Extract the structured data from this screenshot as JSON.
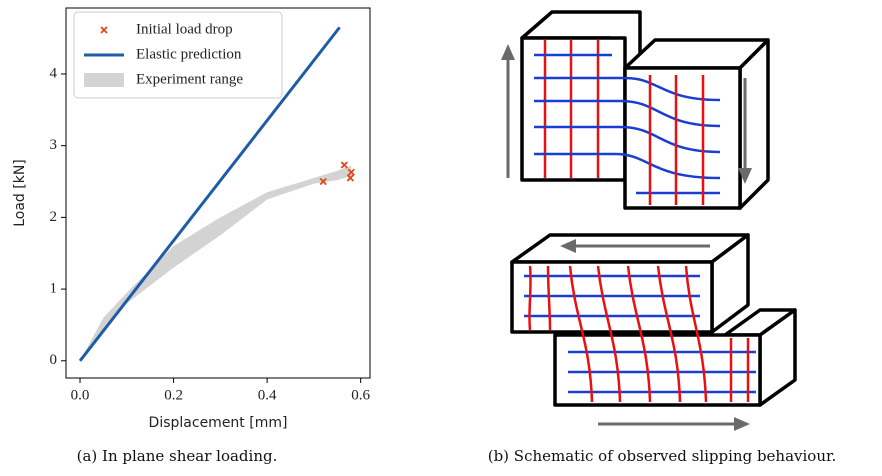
{
  "chart_data": {
    "type": "line",
    "xlabel": "Displacement [mm]",
    "ylabel": "Load  [kN]",
    "xlim": [
      -0.03,
      0.62
    ],
    "ylim": [
      -0.24,
      4.92
    ],
    "xticks": [
      {
        "value": 0,
        "label": "0.0"
      },
      0.2,
      0.4,
      0.6
    ],
    "yticks": [
      0,
      1,
      2,
      3,
      4
    ],
    "legend": "upper left",
    "series": [
      {
        "name": "Initial load drop",
        "kind": "scatter",
        "color": "#e2461c",
        "x": [
          0.52,
          0.565,
          0.578,
          0.58
        ],
        "values": [
          2.5,
          2.73,
          2.55,
          2.63
        ]
      },
      {
        "name": "Elastic prediction",
        "kind": "line",
        "color": "#1f5ba6",
        "x": [
          0,
          0.555
        ],
        "values": [
          0,
          4.65
        ]
      },
      {
        "name": "Experiment range",
        "kind": "band",
        "color": "#d3d3d3",
        "x": [
          0,
          0.05,
          0.1,
          0.2,
          0.3,
          0.4,
          0.5,
          0.55,
          0.58
        ],
        "low": [
          0,
          0.45,
          0.8,
          1.3,
          1.75,
          2.25,
          2.47,
          2.52,
          2.58
        ],
        "high": [
          0,
          0.6,
          0.95,
          1.6,
          2.0,
          2.35,
          2.55,
          2.65,
          2.72
        ]
      }
    ]
  },
  "captions": [
    "(a) In plane shear loading.",
    "(b) Schematic of observed slipping behaviour."
  ]
}
